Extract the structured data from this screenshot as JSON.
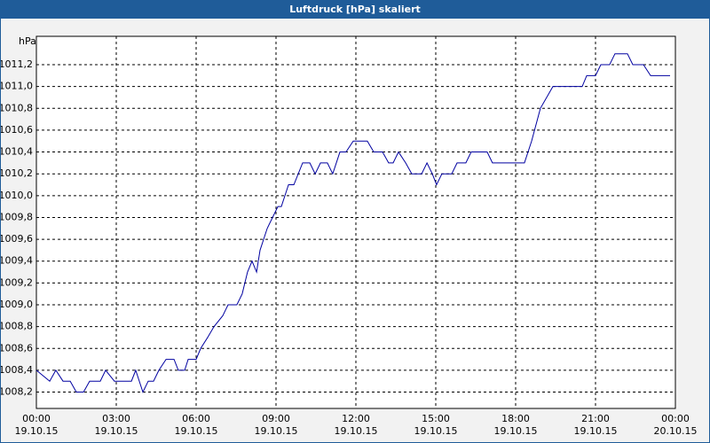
{
  "chart_data": {
    "type": "line",
    "title": "Luftdruck [hPa] skaliert",
    "y_label": "hPa",
    "x": [
      0,
      0.5,
      0.73,
      1,
      1.27,
      1.5,
      1.77,
      2,
      2.4,
      2.6,
      2.93,
      3.57,
      3.73,
      4,
      4.2,
      4.4,
      4.6,
      4.87,
      5.17,
      5.33,
      5.57,
      5.7,
      6,
      6.17,
      6.43,
      6.67,
      7,
      7.2,
      7.53,
      7.73,
      7.93,
      8.1,
      8.27,
      8.4,
      8.67,
      9.07,
      9.2,
      9.47,
      9.67,
      10,
      10.27,
      10.47,
      10.67,
      10.93,
      11.13,
      11.4,
      11.63,
      11.9,
      12.43,
      12.67,
      13,
      13.23,
      13.4,
      13.6,
      13.87,
      14.1,
      14.47,
      14.67,
      14.87,
      15.03,
      15.23,
      15.6,
      15.8,
      16.13,
      16.33,
      16.93,
      17.13,
      18.33,
      18.6,
      18.93,
      19.4,
      20.5,
      20.67,
      21,
      21.2,
      21.53,
      21.73,
      22.2,
      22.4,
      22.8,
      23.07,
      23.8
    ],
    "series": [
      {
        "color": "#0000a0",
        "values": [
          1008.4,
          1008.3,
          1008.4,
          1008.3,
          1008.3,
          1008.2,
          1008.2,
          1008.3,
          1008.3,
          1008.4,
          1008.3,
          1008.3,
          1008.4,
          1008.2,
          1008.3,
          1008.3,
          1008.4,
          1008.5,
          1008.5,
          1008.4,
          1008.4,
          1008.5,
          1008.5,
          1008.6,
          1008.7,
          1008.8,
          1008.9,
          1009.0,
          1009.0,
          1009.1,
          1009.3,
          1009.4,
          1009.3,
          1009.5,
          1009.7,
          1009.9,
          1009.9,
          1010.1,
          1010.1,
          1010.3,
          1010.3,
          1010.2,
          1010.3,
          1010.3,
          1010.2,
          1010.4,
          1010.4,
          1010.5,
          1010.5,
          1010.4,
          1010.4,
          1010.3,
          1010.3,
          1010.4,
          1010.3,
          1010.2,
          1010.2,
          1010.3,
          1010.2,
          1010.1,
          1010.2,
          1010.2,
          1010.3,
          1010.3,
          1010.4,
          1010.4,
          1010.3,
          1010.3,
          1010.5,
          1010.8,
          1011.0,
          1011.0,
          1011.1,
          1011.1,
          1011.2,
          1011.2,
          1011.3,
          1011.3,
          1011.2,
          1011.2,
          1011.1,
          1011.1
        ]
      }
    ],
    "xlim": [
      0,
      24
    ],
    "xticks": [
      {
        "value": 0,
        "label": "00:00\n19.10.15"
      },
      {
        "value": 3,
        "label": "03:00\n19.10.15"
      },
      {
        "value": 6,
        "label": "06:00\n19.10.15"
      },
      {
        "value": 9,
        "label": "09:00\n19.10.15"
      },
      {
        "value": 12,
        "label": "12:00\n19.10.15"
      },
      {
        "value": 15,
        "label": "15:00\n19.10.15"
      },
      {
        "value": 18,
        "label": "18:00\n19.10.15"
      },
      {
        "value": 21,
        "label": "21:00\n19.10.15"
      },
      {
        "value": 24,
        "label": "00:00\n20.10.15"
      }
    ],
    "ylim": [
      1008.05,
      1011.46
    ],
    "yticks": [
      {
        "value": 1008.2,
        "label": "1008,2"
      },
      {
        "value": 1008.4,
        "label": "1008,4"
      },
      {
        "value": 1008.6,
        "label": "1008,6"
      },
      {
        "value": 1008.8,
        "label": "1008,8"
      },
      {
        "value": 1009.0,
        "label": "1009,0"
      },
      {
        "value": 1009.2,
        "label": "1009,2"
      },
      {
        "value": 1009.4,
        "label": "1009,4"
      },
      {
        "value": 1009.6,
        "label": "1009,6"
      },
      {
        "value": 1009.8,
        "label": "1009,8"
      },
      {
        "value": 1010.0,
        "label": "1010,0"
      },
      {
        "value": 1010.2,
        "label": "1010,2"
      },
      {
        "value": 1010.4,
        "label": "1010,4"
      },
      {
        "value": 1010.6,
        "label": "1010,6"
      },
      {
        "value": 1010.8,
        "label": "1010,8"
      },
      {
        "value": 1011.0,
        "label": "1011,0"
      },
      {
        "value": 1011.2,
        "label": "1011,2"
      }
    ],
    "grid": true
  }
}
